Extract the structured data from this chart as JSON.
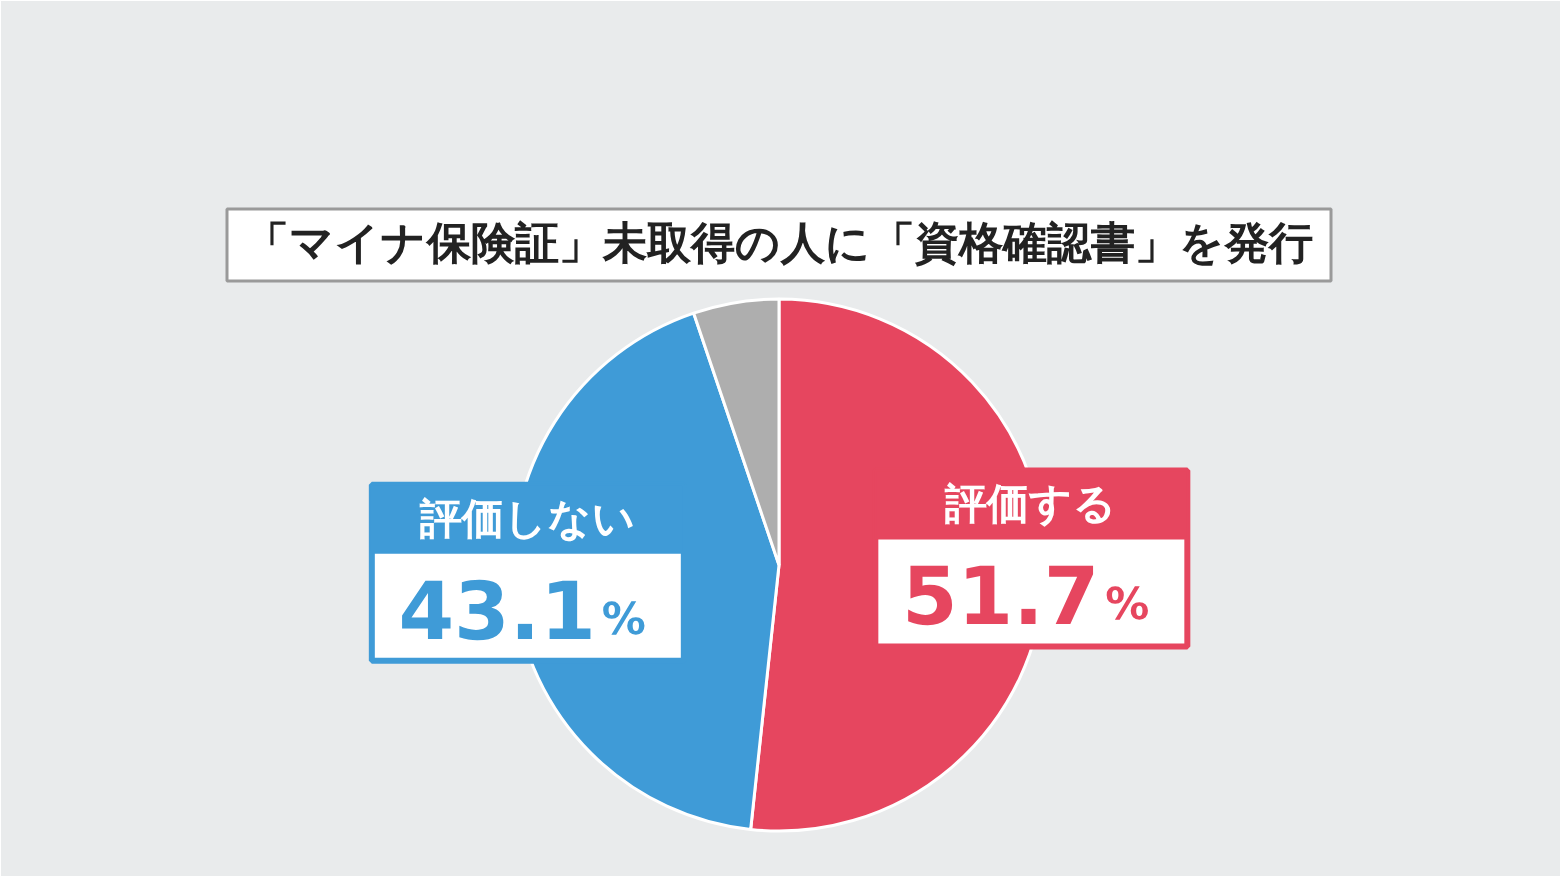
{
  "chart_data": {
    "type": "pie",
    "title": "「マイナ保険証」未取得の人に「資格確認書」を発行",
    "categories": [
      "評価する",
      "評価しない",
      null
    ],
    "values": [
      51.7,
      43.1,
      5.2
    ],
    "colors": [
      "#e6465f",
      "#3f9bd7",
      "#aeaeae"
    ],
    "value_labels": [
      "51.7%",
      "43.1%",
      null
    ]
  }
}
